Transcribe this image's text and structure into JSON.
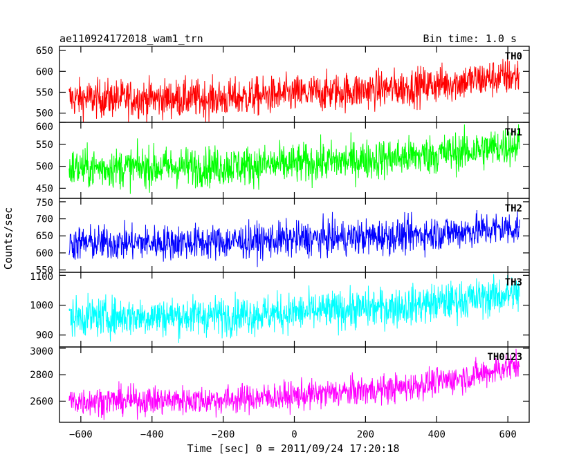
{
  "title_left": "ae110924172018_wam1_trn",
  "title_right": "Bin time: 1.0 s",
  "chart_data": {
    "type": "line",
    "title": "ae110924172018_wam1_trn",
    "subtitle": "Bin time: 1.0 s",
    "xlabel": "Time [sec] 0 = 2011/09/24 17:20:18",
    "ylabel": "Counts/sec",
    "xlim": [
      -660,
      660
    ],
    "xticks": [
      -600,
      -400,
      -200,
      0,
      200,
      400,
      600
    ],
    "x_start": -633,
    "x_end": 633,
    "x_step": 1,
    "grid": false,
    "panels": [
      {
        "name": "TH0",
        "color": "#ff0000",
        "ylim": [
          478,
          660
        ],
        "yticks": [
          500,
          550,
          600,
          650
        ],
        "trend": [
          [
            -633,
            535
          ],
          [
            -200,
            535
          ],
          [
            0,
            545
          ],
          [
            300,
            560
          ],
          [
            500,
            578
          ],
          [
            633,
            590
          ]
        ],
        "noise": 23
      },
      {
        "name": "TH1",
        "color": "#00ff00",
        "ylim": [
          427,
          600
        ],
        "yticks": [
          450,
          500,
          550,
          600
        ],
        "trend": [
          [
            -633,
            495
          ],
          [
            -200,
            500
          ],
          [
            0,
            505
          ],
          [
            300,
            520
          ],
          [
            500,
            535
          ],
          [
            633,
            550
          ]
        ],
        "noise": 23
      },
      {
        "name": "TH2",
        "color": "#0000ff",
        "ylim": [
          543,
          760
        ],
        "yticks": [
          550,
          600,
          650,
          700,
          750
        ],
        "trend": [
          [
            -633,
            628
          ],
          [
            -200,
            632
          ],
          [
            0,
            640
          ],
          [
            300,
            650
          ],
          [
            500,
            665
          ],
          [
            633,
            675
          ]
        ],
        "noise": 26
      },
      {
        "name": "TH3",
        "color": "#00ffff",
        "ylim": [
          860,
          1110
        ],
        "yticks": [
          900,
          1000,
          1100
        ],
        "trend": [
          [
            -633,
            960
          ],
          [
            -200,
            965
          ],
          [
            0,
            975
          ],
          [
            300,
            995
          ],
          [
            500,
            1020
          ],
          [
            633,
            1040
          ]
        ],
        "noise": 33
      },
      {
        "name": "TH0123",
        "color": "#ff00ff",
        "ylim": [
          2440,
          3010
        ],
        "yticks": [
          2600,
          2800,
          3000
        ],
        "trend": [
          [
            -633,
            2600
          ],
          [
            -200,
            2610
          ],
          [
            0,
            2640
          ],
          [
            300,
            2700
          ],
          [
            500,
            2790
          ],
          [
            633,
            2880
          ]
        ],
        "noise": 55
      }
    ]
  }
}
